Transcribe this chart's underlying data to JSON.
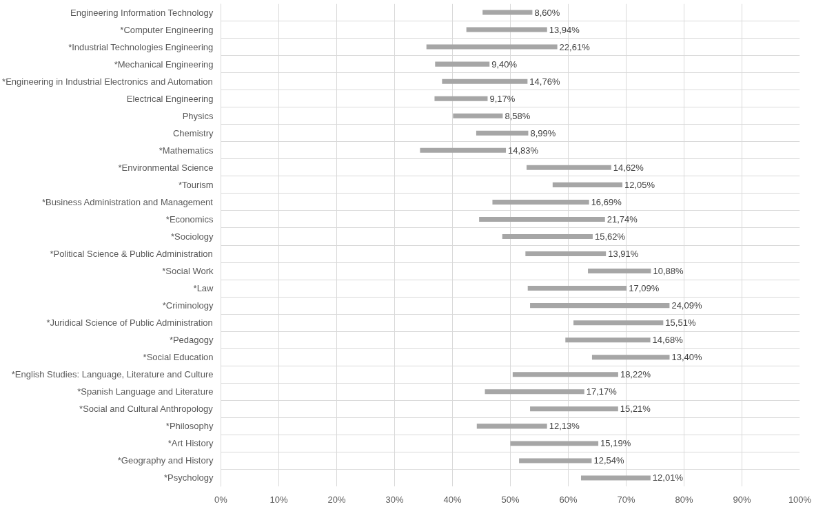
{
  "chart_data": {
    "type": "bar",
    "orientation": "horizontal",
    "grid": true,
    "color": "#a6a6a6",
    "categories": [
      "Engineering Information Technology",
      "*Computer Engineering",
      "*Industrial Technologies Engineering",
      "*Mechanical Engineering",
      "*Engineering in Industrial Electronics and Automation",
      "Electrical Engineering",
      "Physics",
      "Chemistry",
      "*Mathematics",
      "*Environmental Science",
      "*Tourism",
      "*Business Administration and Management",
      "*Economics",
      "*Sociology",
      "*Political Science & Public Administration",
      "*Social Work",
      "*Law",
      "*Criminology",
      "*Juridical Science of Public Administration",
      "*Pedagogy",
      "*Social Education",
      "*English Studies: Language, Literature and Culture",
      "*Spanish Language and Literature",
      "*Social and Cultural Anthropology",
      "*Philosophy",
      "*Art History",
      "*Geography and History",
      "*Psychology"
    ],
    "base": [
      45.2,
      42.4,
      35.5,
      37.0,
      38.2,
      36.9,
      40.1,
      44.1,
      34.4,
      52.8,
      57.3,
      46.9,
      44.6,
      48.6,
      52.6,
      63.4,
      53.0,
      53.4,
      60.9,
      59.5,
      64.1,
      50.4,
      45.6,
      53.4,
      44.2,
      50.0,
      51.5,
      62.2
    ],
    "values": [
      8.6,
      13.94,
      22.61,
      9.4,
      14.76,
      9.17,
      8.58,
      8.99,
      14.83,
      14.62,
      12.05,
      16.69,
      21.74,
      15.62,
      13.91,
      10.88,
      17.09,
      24.09,
      15.51,
      14.68,
      13.4,
      18.22,
      17.17,
      15.21,
      12.13,
      15.19,
      12.54,
      12.01
    ],
    "value_labels": [
      "8,60%",
      "13,94%",
      "22,61%",
      "9,40%",
      "14,76%",
      "9,17%",
      "8,58%",
      "8,99%",
      "14,83%",
      "14,62%",
      "12,05%",
      "16,69%",
      "21,74%",
      "15,62%",
      "13,91%",
      "10,88%",
      "17,09%",
      "24,09%",
      "15,51%",
      "14,68%",
      "13,40%",
      "18,22%",
      "17,17%",
      "15,21%",
      "12,13%",
      "15,19%",
      "12,54%",
      "12,01%"
    ],
    "xlim": [
      0,
      100
    ],
    "xticks": [
      {
        "value": 0,
        "label": "0%"
      },
      {
        "value": 10,
        "label": "10%"
      },
      {
        "value": 20,
        "label": "20%"
      },
      {
        "value": 30,
        "label": "30%"
      },
      {
        "value": 40,
        "label": "40%"
      },
      {
        "value": 50,
        "label": "50%"
      },
      {
        "value": 60,
        "label": "60%"
      },
      {
        "value": 70,
        "label": "70%"
      },
      {
        "value": 80,
        "label": "80%"
      },
      {
        "value": 90,
        "label": "90%"
      },
      {
        "value": 100,
        "label": "100%"
      }
    ]
  }
}
